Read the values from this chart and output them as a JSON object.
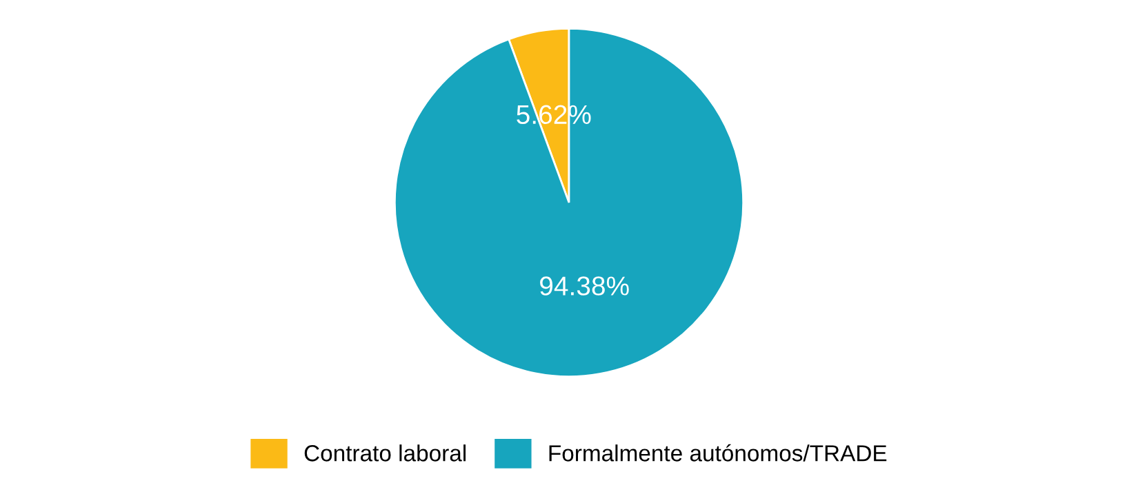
{
  "chart_data": {
    "type": "pie",
    "categories": [
      "Contrato laboral",
      "Formalmente autónomos/TRADE"
    ],
    "values": [
      5.62,
      94.38
    ],
    "colors": [
      "#fbba16",
      "#17a5be"
    ],
    "value_labels": [
      "5.62%",
      "94.38%"
    ],
    "legend": "bottom"
  }
}
